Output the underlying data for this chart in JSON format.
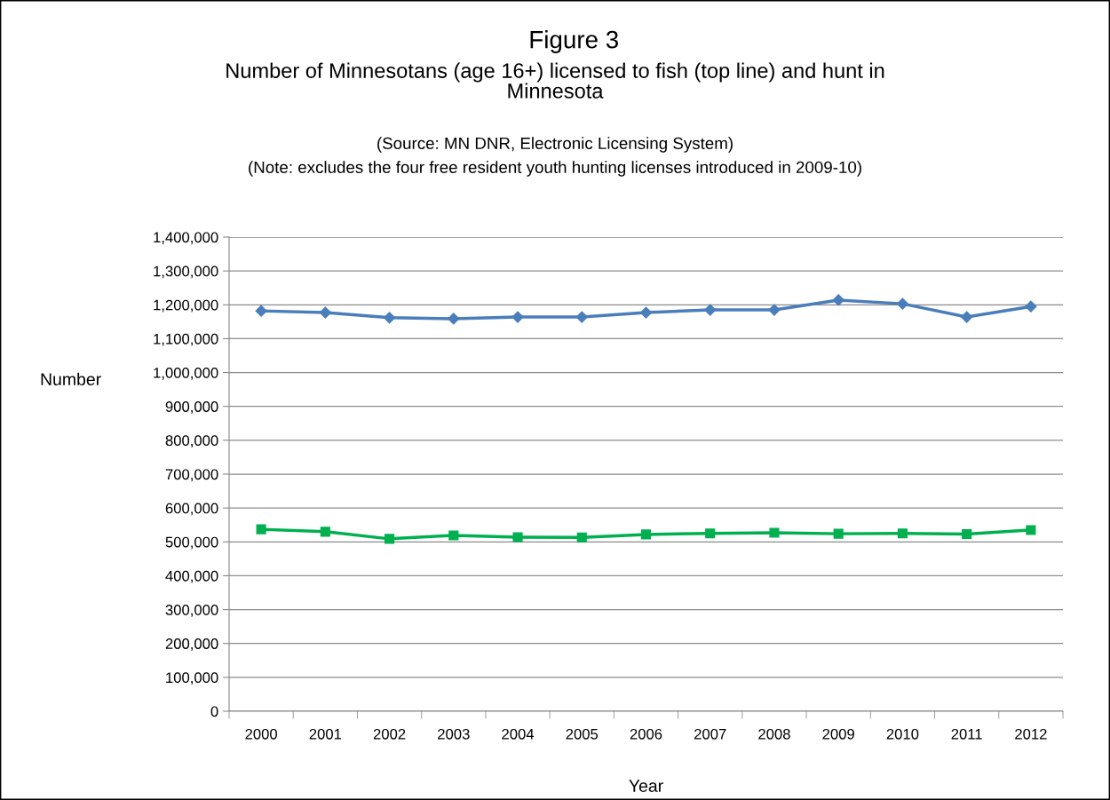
{
  "chart_data": {
    "type": "line",
    "title": "Figure 3",
    "subtitle": "Number of Minnesotans (age 16+) licensed to fish (top line) and hunt in\nMinnesota",
    "annotations": [
      "(Source: MN DNR, Electronic Licensing System)",
      "(Note: excludes the four free resident youth hunting licenses introduced in 2009-10)"
    ],
    "xlabel": "Year",
    "ylabel": "Number",
    "categories": [
      "2000",
      "2001",
      "2002",
      "2003",
      "2004",
      "2005",
      "2006",
      "2007",
      "2008",
      "2009",
      "2010",
      "2011",
      "2012"
    ],
    "series": [
      {
        "color": "#4a7ebb",
        "marker": "diamond",
        "values": [
          1182000,
          1177000,
          1162000,
          1159000,
          1164000,
          1164000,
          1177000,
          1185000,
          1185000,
          1214000,
          1203000,
          1164000,
          1195000
        ]
      },
      {
        "color": "#00b050",
        "marker": "square",
        "values": [
          537000,
          530000,
          509000,
          519000,
          514000,
          513000,
          522000,
          525000,
          527000,
          524000,
          525000,
          523000,
          535000
        ]
      }
    ],
    "ylim": [
      0,
      1400000
    ],
    "yticks": [
      {
        "value": 0,
        "label": "0"
      },
      {
        "value": 100000,
        "label": "100,000"
      },
      {
        "value": 200000,
        "label": "200,000"
      },
      {
        "value": 300000,
        "label": "300,000"
      },
      {
        "value": 400000,
        "label": "400,000"
      },
      {
        "value": 500000,
        "label": "500,000"
      },
      {
        "value": 600000,
        "label": "600,000"
      },
      {
        "value": 700000,
        "label": "700,000"
      },
      {
        "value": 800000,
        "label": "800,000"
      },
      {
        "value": 900000,
        "label": "900,000"
      },
      {
        "value": 1000000,
        "label": "1,000,000"
      },
      {
        "value": 1100000,
        "label": "1,100,000"
      },
      {
        "value": 1200000,
        "label": "1,200,000"
      },
      {
        "value": 1300000,
        "label": "1,300,000"
      },
      {
        "value": 1400000,
        "label": "1,400,000"
      }
    ],
    "grid": "y",
    "line_style": "solid"
  }
}
